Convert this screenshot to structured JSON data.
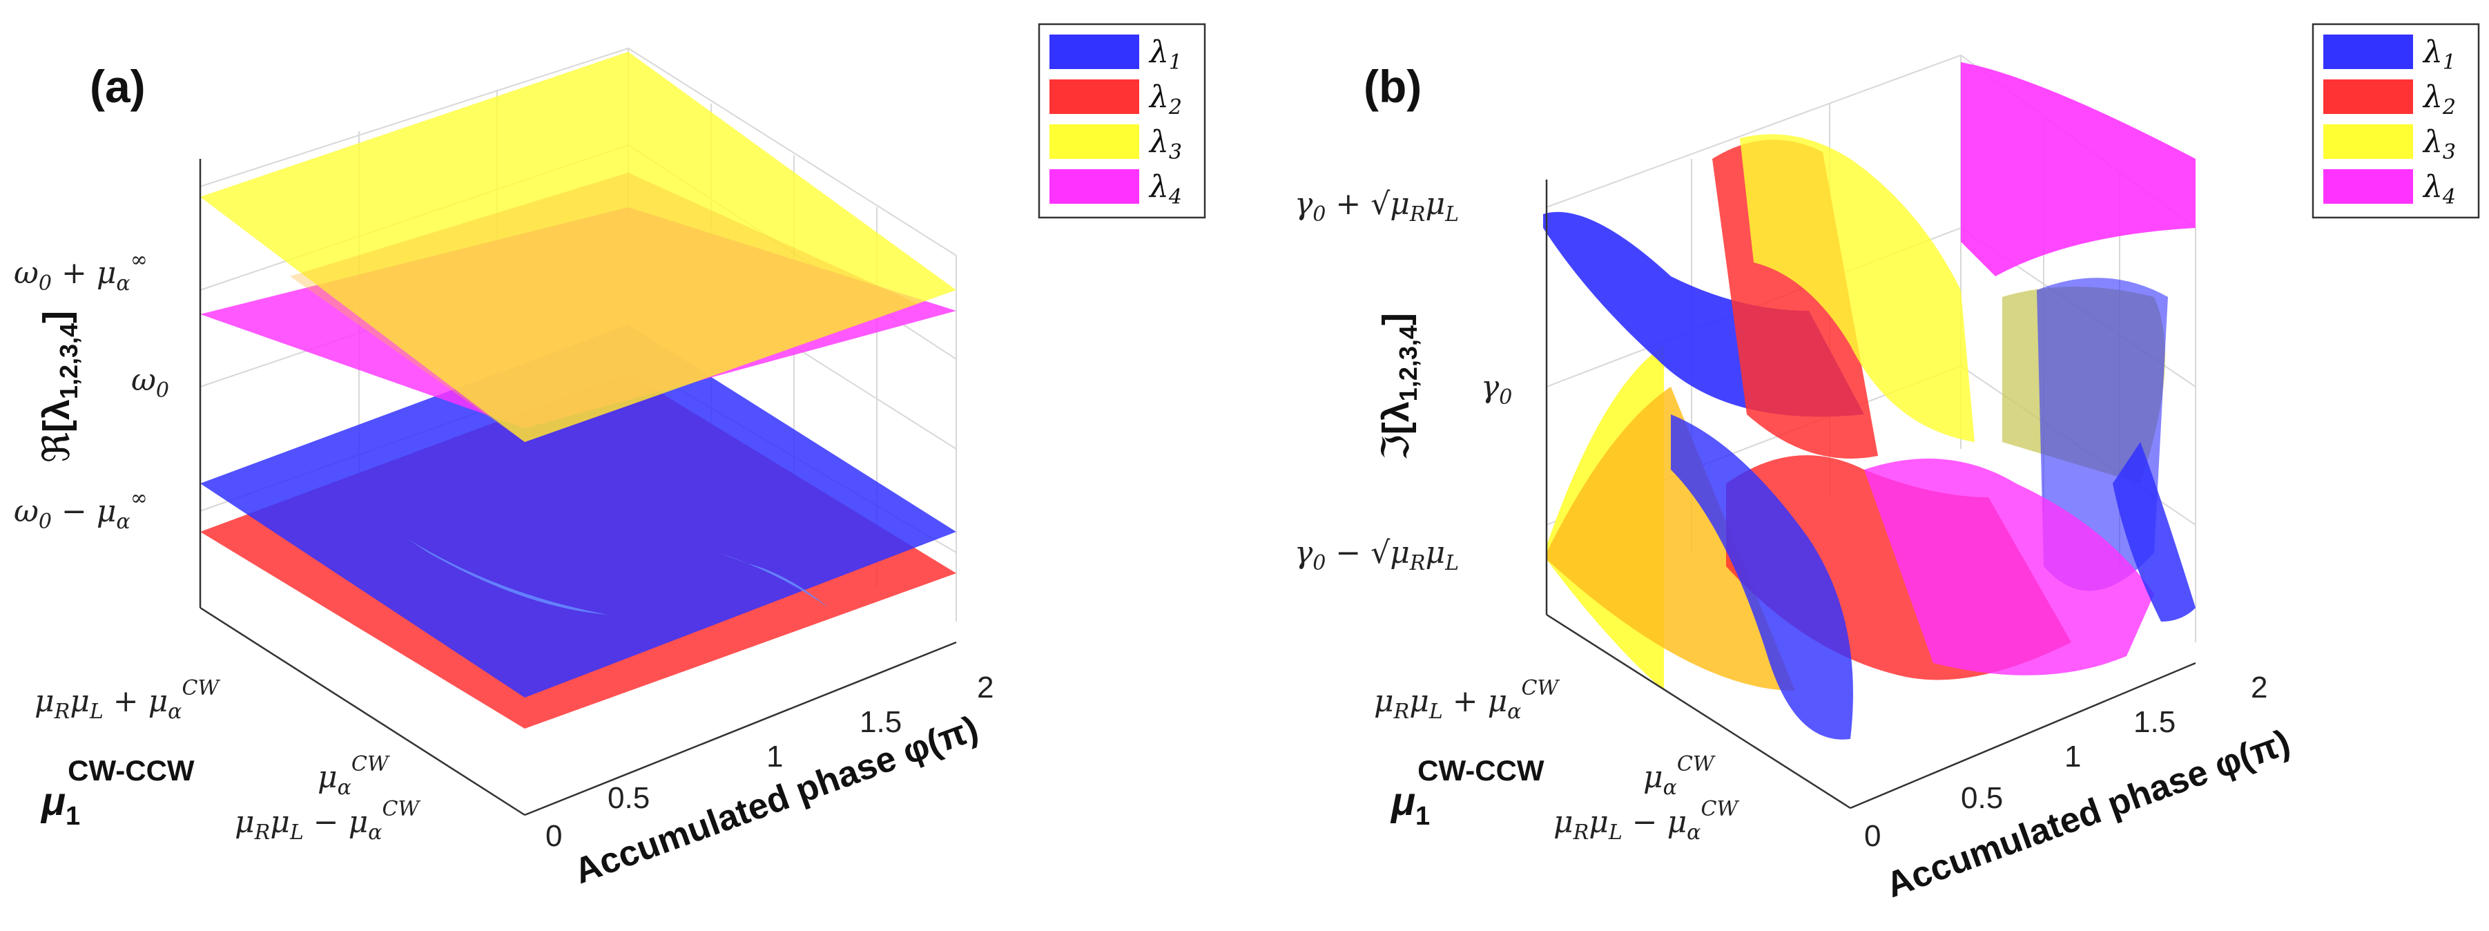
{
  "chart_data": [
    {
      "panel": "(a)",
      "type": "surface3d",
      "zlabel": "ℜ[λ1,2,3,4]",
      "z_ticks": [
        "ω0 + μα∞",
        "ω0",
        "ω0 − μα∞"
      ],
      "y_label": "μ1CW-CCW",
      "y_ticks": [
        "μRμL + μαCW",
        "μαCW",
        "μRμL − μαCW"
      ],
      "x_label": "Accumulated phase φ(π)",
      "x_ticks": [
        "0",
        "0.5",
        "1",
        "1.5",
        "2"
      ],
      "xlim": [
        0,
        2
      ],
      "legend": [
        {
          "name": "λ1",
          "color": "#3333ff"
        },
        {
          "name": "λ2",
          "color": "#ff3333"
        },
        {
          "name": "λ3",
          "color": "#ffff33"
        },
        {
          "name": "λ4",
          "color": "#ff33ff"
        }
      ]
    },
    {
      "panel": "(b)",
      "type": "surface3d",
      "zlabel": "ℑ[λ1,2,3,4]",
      "z_ticks": [
        "γ0 + √μRμL",
        "γ0",
        "γ0 − √μRμL"
      ],
      "y_label": "μ1CW-CCW",
      "y_ticks": [
        "μRμL + μαCW",
        "μαCW",
        "μRμL − μαCW"
      ],
      "x_label": "Accumulated phase φ(π)",
      "x_ticks": [
        "0",
        "0.5",
        "1",
        "1.5",
        "2"
      ],
      "xlim": [
        0,
        2
      ],
      "legend": [
        {
          "name": "λ1",
          "color": "#3333ff"
        },
        {
          "name": "λ2",
          "color": "#ff3333"
        },
        {
          "name": "λ3",
          "color": "#ffff33"
        },
        {
          "name": "λ4",
          "color": "#ff33ff"
        }
      ]
    }
  ],
  "text": {
    "a": {
      "letter": "(a)",
      "z_re": "ℜ",
      "z_open": "[λ",
      "z_sub": "1,2,3,4",
      "z_close": "]",
      "zt_omega": "ω",
      "zt_0": "0",
      "zt_plus": " + μ",
      "zt_minus": " − μ",
      "zt_alpha": "α",
      "zt_inf": "∞",
      "yt_murml": "μ",
      "yt_R": "R",
      "yt_mu2": "μ",
      "yt_L": "L",
      "yt_plus": " + μ",
      "yt_minus": " − μ",
      "yt_alpha": "α",
      "yt_cw": "CW",
      "mu_main": "μ",
      "mu_sub": "1",
      "mu_sup": "CW-CCW",
      "x_label": "Accumulated phase φ(π)",
      "x0": "0",
      "x05": "0.5",
      "x1": "1",
      "x15": "1.5",
      "x2": "2",
      "leg1": "λ",
      "leg2": "λ",
      "leg3": "λ",
      "leg4": "λ",
      "s1": "1",
      "s2": "2",
      "s3": "3",
      "s4": "4"
    },
    "b": {
      "letter": "(b)",
      "z_im": "ℑ",
      "z_open": "[λ",
      "z_sub": "1,2,3,4",
      "z_close": "]",
      "zt_gamma": "γ",
      "zt_0": "0",
      "zt_plus": " + ",
      "zt_minus": " − ",
      "zt_sqrt": "√",
      "zt_mu": "μ",
      "zt_R": "R",
      "zt_L": "L",
      "yt_murml": "μ",
      "yt_R": "R",
      "yt_mu2": "μ",
      "yt_L": "L",
      "yt_plus": " + μ",
      "yt_minus": " − μ",
      "yt_alpha": "α",
      "yt_cw": "CW",
      "mu_main": "μ",
      "mu_sub": "1",
      "mu_sup": "CW-CCW",
      "x_label": "Accumulated phase φ(π)",
      "x0": "0",
      "x05": "0.5",
      "x1": "1",
      "x15": "1.5",
      "x2": "2",
      "leg1": "λ",
      "leg2": "λ",
      "leg3": "λ",
      "leg4": "λ",
      "s1": "1",
      "s2": "2",
      "s3": "3",
      "s4": "4"
    }
  },
  "colors": {
    "blue": "#3333ff",
    "red": "#ff3333",
    "yellow": "#ffff33",
    "magenta": "#ff33ff"
  }
}
